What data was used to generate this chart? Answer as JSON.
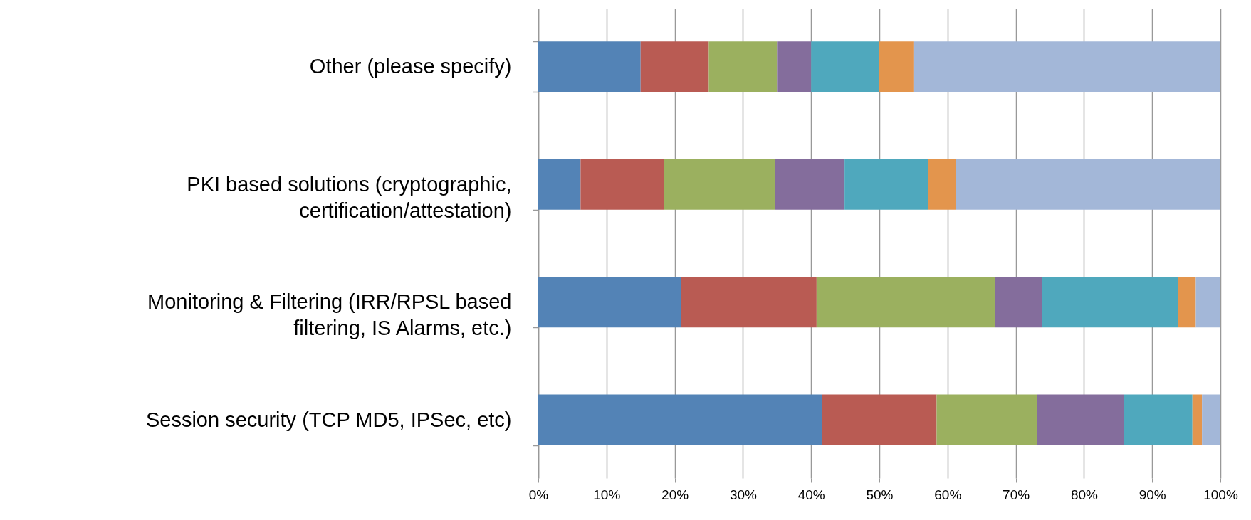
{
  "chart_data": {
    "type": "bar",
    "orientation": "horizontal",
    "stacked": true,
    "categories": [
      "Other (please specify)",
      "PKI based  solutions (cryptographic,\ncertification/attestation)",
      "Monitoring & Filtering (IRR/RPSL based\nfiltering, IS Alarms, etc.)",
      "Session security (TCP MD5, IPSec, etc)"
    ],
    "series": [
      {
        "color": "#5383b6",
        "values": [
          15,
          6.2,
          20.9,
          41.6
        ]
      },
      {
        "color": "#b95b53",
        "values": [
          10,
          12.2,
          19.9,
          16.8
        ]
      },
      {
        "color": "#9bb05f",
        "values": [
          10,
          16.3,
          26.2,
          14.7
        ]
      },
      {
        "color": "#846d9c",
        "values": [
          5,
          10.2,
          6.9,
          12.8
        ]
      },
      {
        "color": "#4fa8bd",
        "values": [
          10,
          12.2,
          19.9,
          10.0
        ]
      },
      {
        "color": "#e3954d",
        "values": [
          5,
          4.1,
          2.6,
          1.4
        ]
      },
      {
        "color": "#a3b7d8",
        "values": [
          45,
          38.8,
          3.6,
          2.7
        ]
      }
    ],
    "xlim": [
      0,
      100
    ],
    "xticks": [
      {
        "value": 0,
        "label": "0%"
      },
      {
        "value": 10,
        "label": "10%"
      },
      {
        "value": 20,
        "label": "20%"
      },
      {
        "value": 30,
        "label": "30%"
      },
      {
        "value": 40,
        "label": "40%"
      },
      {
        "value": 50,
        "label": "50%"
      },
      {
        "value": 60,
        "label": "60%"
      },
      {
        "value": 70,
        "label": "70%"
      },
      {
        "value": 80,
        "label": "80%"
      },
      {
        "value": 90,
        "label": "90%"
      },
      {
        "value": 100,
        "label": "100%"
      }
    ],
    "grid": "x"
  }
}
